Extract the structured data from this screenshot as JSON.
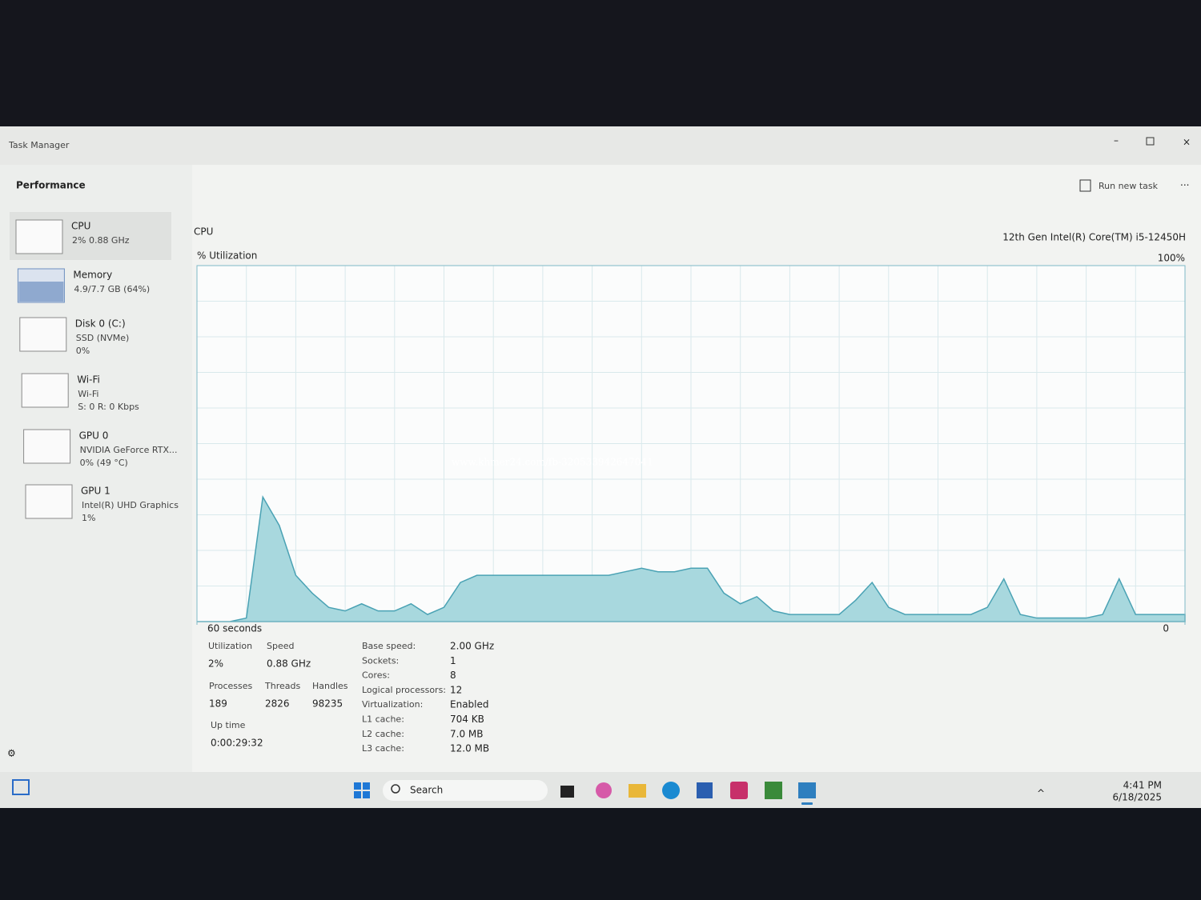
{
  "window": {
    "title": "Task Manager"
  },
  "header": {
    "title": "Performance",
    "run_new_task": "Run new task"
  },
  "sidebar": [
    {
      "name": "CPU",
      "lines": [
        "2% 0.88 GHz"
      ]
    },
    {
      "name": "Memory",
      "lines": [
        "4.9/7.7 GB (64%)"
      ]
    },
    {
      "name": "Disk 0 (C:)",
      "lines": [
        "SSD (NVMe)",
        "0%"
      ]
    },
    {
      "name": "Wi-Fi",
      "lines": [
        "Wi-Fi",
        "S: 0 R: 0 Kbps"
      ]
    },
    {
      "name": "GPU 0",
      "lines": [
        "NVIDIA GeForce RTX...",
        "0% (49 °C)"
      ]
    },
    {
      "name": "GPU 1",
      "lines": [
        "Intel(R) UHD Graphics",
        "1%"
      ]
    }
  ],
  "main": {
    "title": "CPU",
    "processor": "12th Gen Intel(R) Core(TM) i5-12450H"
  },
  "chart_data": {
    "type": "area",
    "ylabel": "% Utilization",
    "color": "#a8d8de",
    "ylim": [
      0,
      100
    ],
    "yticks": [
      {
        "value": 100,
        "label": "100%"
      }
    ],
    "xlim": [
      60,
      0
    ],
    "xticks": [
      {
        "value": 60,
        "label": "60 seconds"
      },
      0
    ],
    "x": [
      60,
      59,
      58,
      57,
      56,
      55,
      54,
      53,
      52,
      51,
      50,
      49,
      48,
      47,
      46,
      45,
      44,
      43,
      42,
      41,
      40,
      39,
      38,
      37,
      36,
      35,
      34,
      33,
      32,
      31,
      30,
      29,
      28,
      27,
      26,
      25,
      24,
      23,
      22,
      21,
      20,
      19,
      18,
      17,
      16,
      15,
      14,
      13,
      12,
      11,
      10,
      9,
      8,
      7,
      6,
      5,
      4,
      3,
      2,
      1,
      0
    ],
    "values": [
      0,
      0,
      0,
      1,
      35,
      27,
      13,
      8,
      4,
      3,
      5,
      3,
      3,
      5,
      2,
      4,
      11,
      13,
      13,
      13,
      13,
      13,
      13,
      13,
      13,
      13,
      14,
      15,
      14,
      14,
      15,
      15,
      8,
      5,
      7,
      3,
      2,
      2,
      2,
      2,
      6,
      11,
      4,
      2,
      2,
      2,
      2,
      2,
      4,
      12,
      2,
      1,
      1,
      1,
      1,
      2,
      12,
      2,
      2,
      2,
      2
    ]
  },
  "stats": [
    {
      "label": "Utilization",
      "value": "2%"
    },
    {
      "label": "Speed",
      "value": "0.88 GHz"
    },
    {
      "label": "Processes",
      "value": "189"
    },
    {
      "label": "Threads",
      "value": "2826"
    },
    {
      "label": "Handles",
      "value": "98235"
    },
    {
      "label": "Up time",
      "value": "0:00:29:32"
    }
  ],
  "specs": [
    [
      "Base speed:",
      "2.00 GHz"
    ],
    [
      "Sockets:",
      "1"
    ],
    [
      "Cores:",
      "8"
    ],
    [
      "Logical processors:",
      "12"
    ],
    [
      "Virtualization:",
      "Enabled"
    ],
    [
      "L1 cache:",
      "704 KB"
    ],
    [
      "L2 cache:",
      "7.0 MB"
    ],
    [
      "L3 cache:",
      "12.0 MB"
    ]
  ],
  "watermark": "www.khmer24.com/fb-320533942647041",
  "taskbar": {
    "search": "Search",
    "time": "4:41 PM",
    "date": "6/18/2025"
  }
}
